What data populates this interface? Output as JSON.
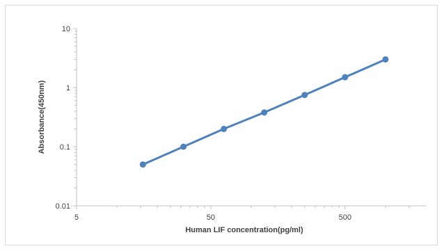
{
  "chart_data": {
    "type": "line",
    "title": "",
    "xlabel": "Human LIF concentration(pg/ml)",
    "ylabel": "Absorbance(450nm)",
    "x_scale": "log",
    "y_scale": "log",
    "xlim": [
      5,
      2000
    ],
    "ylim": [
      0.01,
      10
    ],
    "x_ticks": [
      "5",
      "50",
      "500"
    ],
    "y_ticks": [
      "10",
      "1",
      "0.1",
      "0.01"
    ],
    "grid": false,
    "legend": "none",
    "series": [
      {
        "color": "#4f81bd",
        "x": [
          15.6,
          31.25,
          62.5,
          125,
          250,
          500,
          1000
        ],
        "y": [
          0.05,
          0.1,
          0.2,
          0.38,
          0.75,
          1.5,
          3.0
        ]
      }
    ]
  }
}
